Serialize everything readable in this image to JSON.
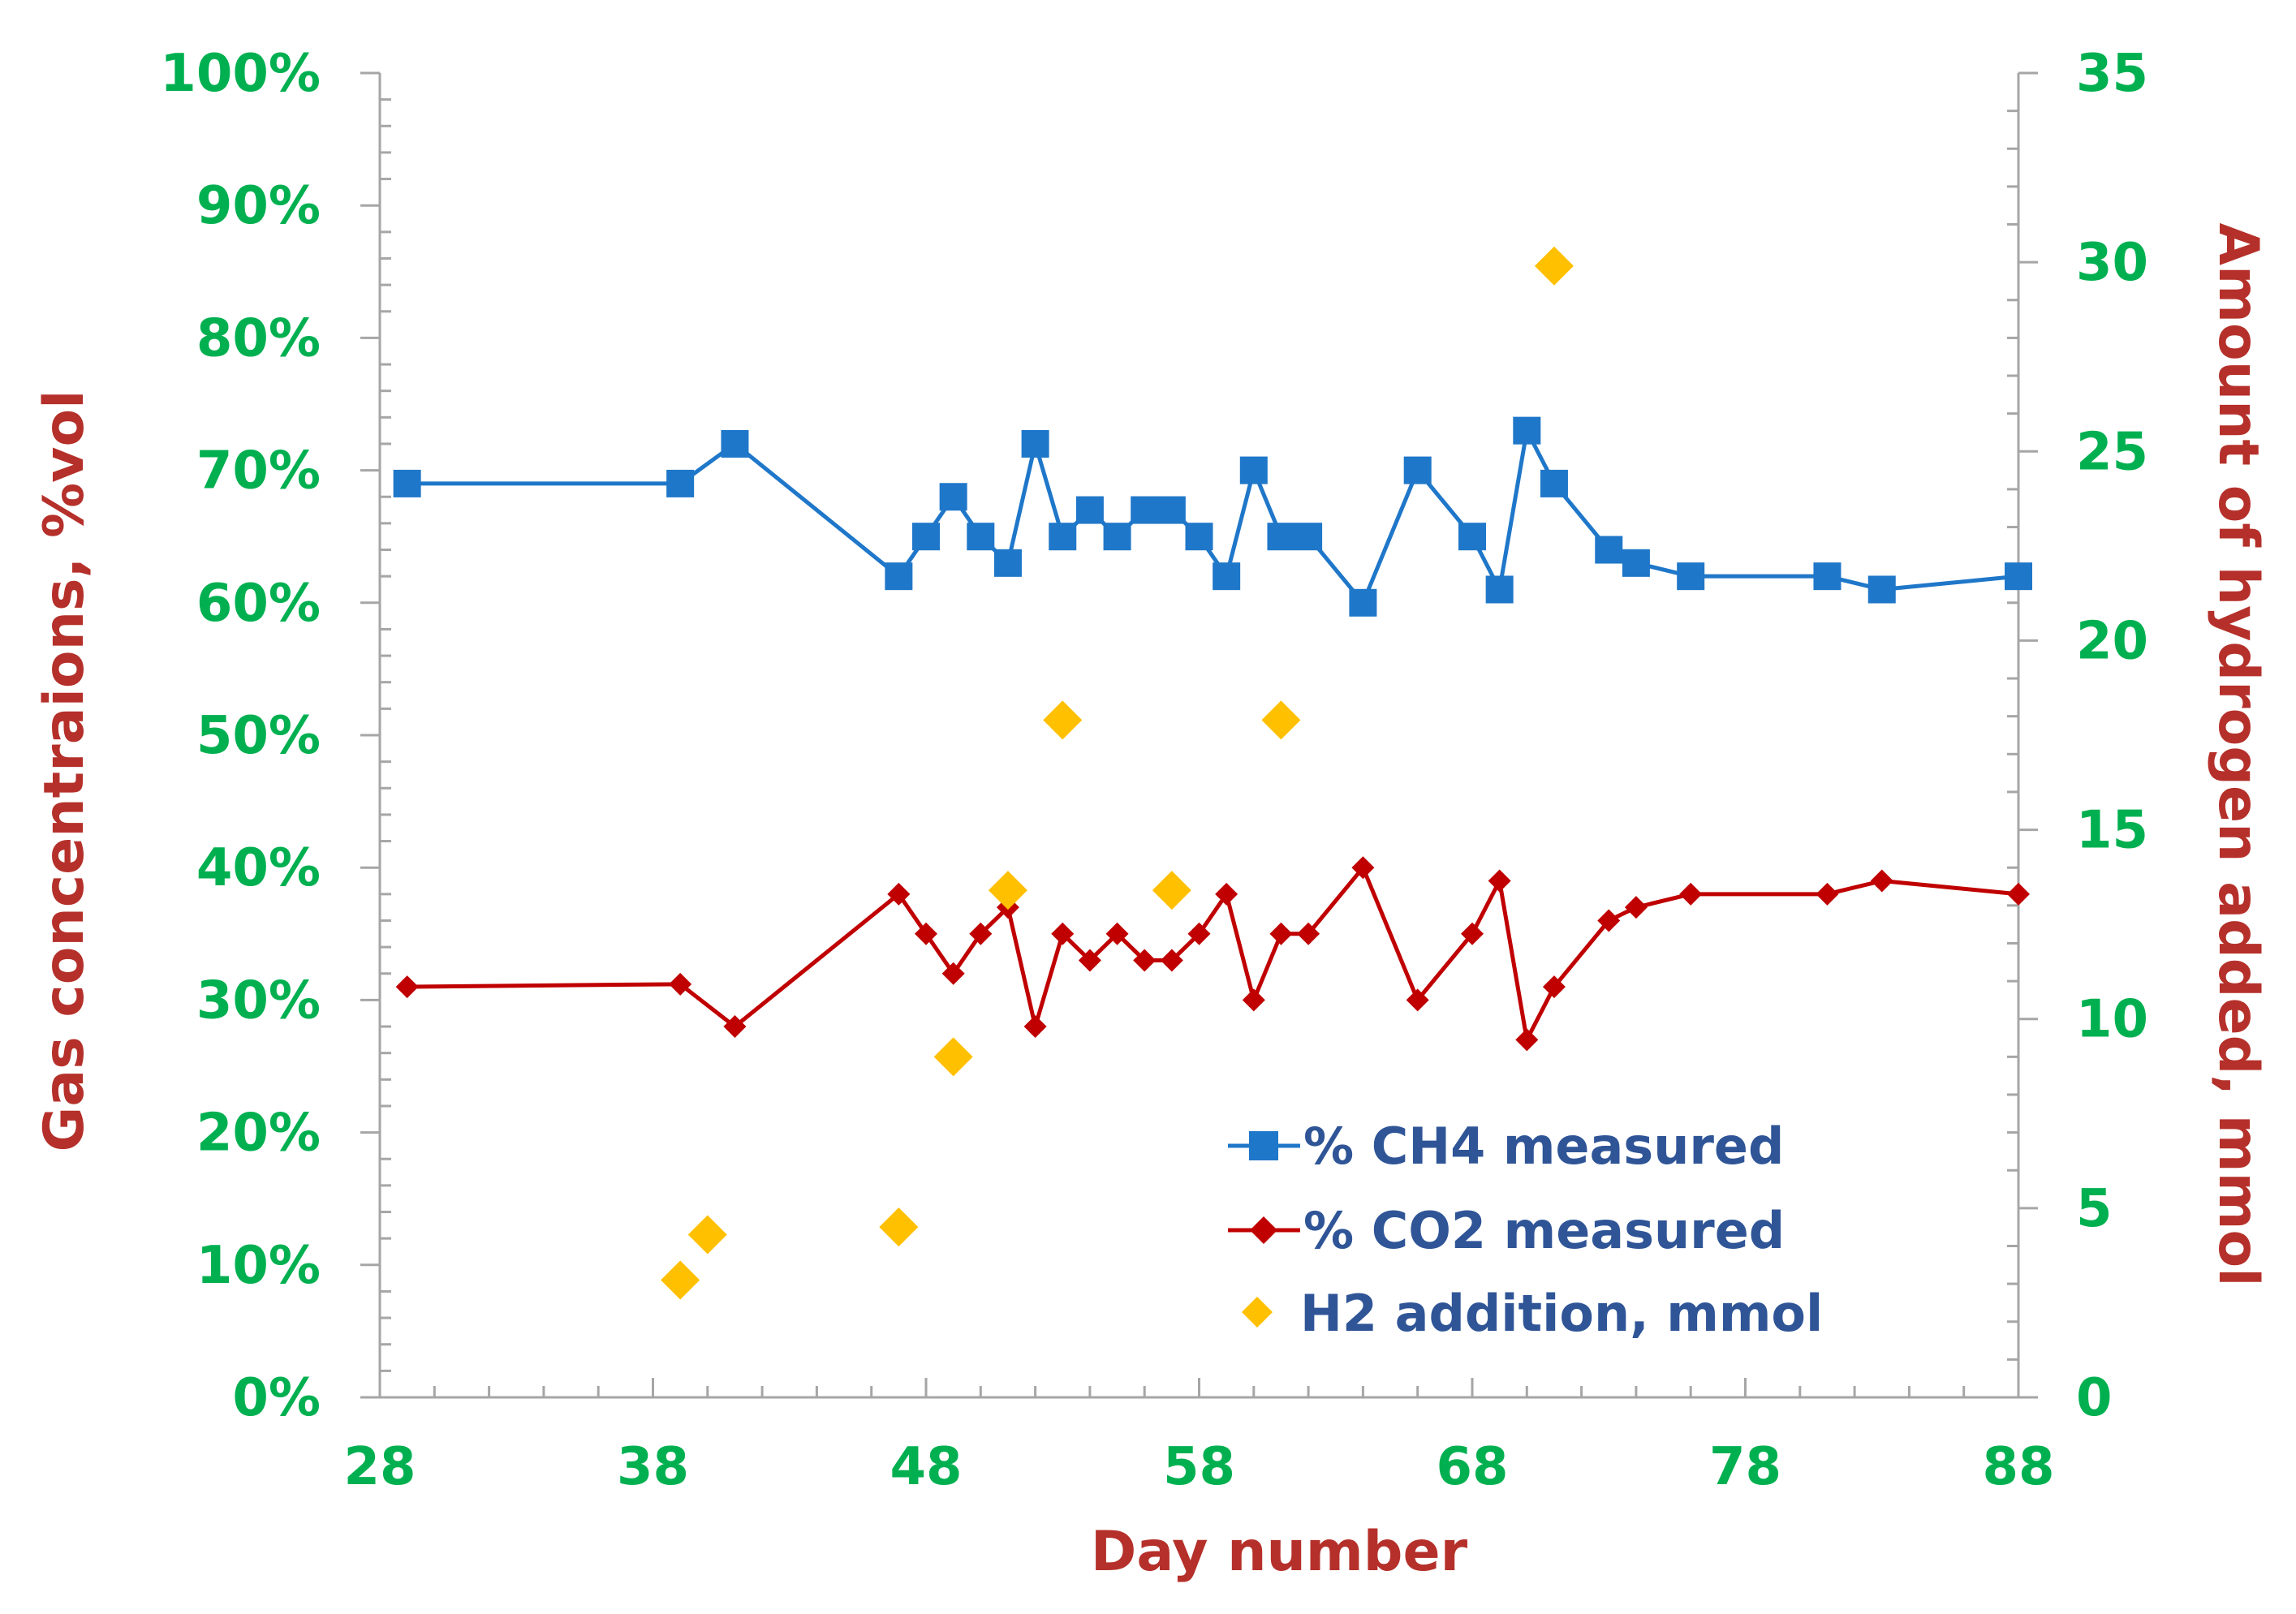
{
  "chart_data": {
    "type": "scatter",
    "title": "",
    "xlabel": "Day number",
    "ylabel": "Gas concentraions, %vol",
    "y2label": "Amount of hydrogen added, mmol",
    "xlim": [
      28,
      88
    ],
    "ylim": [
      0,
      100
    ],
    "y2lim": [
      0,
      35
    ],
    "x_ticks": [
      28,
      38,
      48,
      58,
      68,
      78,
      88
    ],
    "y_ticks": [
      0,
      10,
      20,
      30,
      40,
      50,
      60,
      70,
      80,
      90,
      100
    ],
    "y_tick_labels": [
      "0%",
      "10%",
      "20%",
      "30%",
      "40%",
      "50%",
      "60%",
      "70%",
      "80%",
      "90%",
      "100%"
    ],
    "y2_ticks": [
      0,
      5,
      10,
      15,
      20,
      25,
      30,
      35
    ],
    "legend_position": "bottom-right",
    "grid": false,
    "colors": {
      "ch4": "#1F77C9",
      "co2": "#C00000",
      "h2": "#FFC000",
      "tick_labels": "#00B050",
      "axis_titles": "#B5302A",
      "legend_text": "#2F5597",
      "axis_line": "#A6A6A6"
    },
    "series": [
      {
        "name": "% CH4 measured",
        "axis": "left",
        "style": "line-square",
        "x": [
          29,
          39,
          41,
          47,
          48,
          49,
          50,
          51,
          52,
          53,
          54,
          55,
          56,
          57,
          58,
          59,
          60,
          61,
          62,
          64,
          66,
          68,
          69,
          70,
          71,
          73,
          74,
          76,
          81,
          83,
          88
        ],
        "y": [
          69,
          69,
          72,
          62,
          65,
          68,
          65,
          63,
          72,
          65,
          67,
          65,
          67,
          67,
          65,
          62,
          70,
          65,
          65,
          60,
          70,
          65,
          61,
          73,
          69,
          64,
          63,
          62,
          62,
          61,
          62
        ]
      },
      {
        "name": "% CO2 measured",
        "axis": "left",
        "style": "line-diamond",
        "x": [
          29,
          39,
          41,
          47,
          48,
          49,
          50,
          51,
          52,
          53,
          54,
          55,
          56,
          57,
          58,
          59,
          60,
          61,
          62,
          64,
          66,
          68,
          69,
          70,
          71,
          73,
          74,
          76,
          81,
          83,
          88
        ],
        "y": [
          31,
          31.2,
          28,
          38,
          35,
          32,
          35,
          37,
          28,
          35,
          33,
          35,
          33,
          33,
          35,
          38,
          30,
          35,
          35,
          40,
          30,
          35,
          39,
          27,
          31,
          36,
          37,
          38,
          38,
          39,
          38
        ]
      },
      {
        "name": "H2 addition, mmol",
        "axis": "right",
        "style": "marker-diamond",
        "x": [
          39,
          40,
          47,
          49,
          51,
          53,
          57,
          61,
          71
        ],
        "y": [
          3.1,
          4.3,
          4.5,
          9,
          13.4,
          17.9,
          13.4,
          17.9,
          29.9
        ]
      }
    ]
  }
}
